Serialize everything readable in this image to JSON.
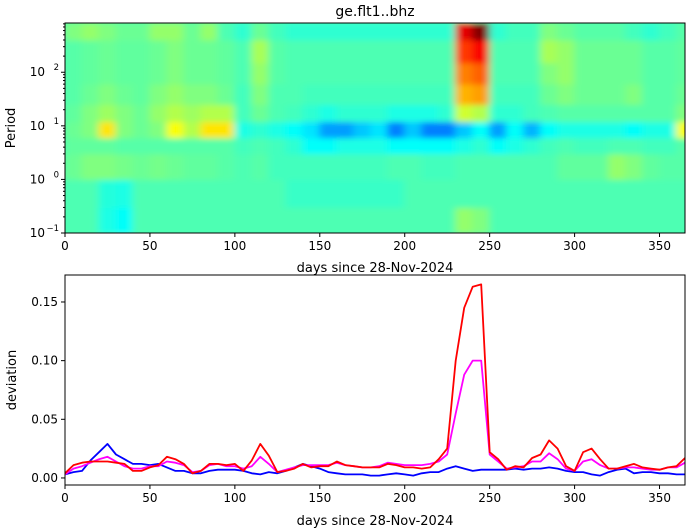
{
  "chart_data": [
    {
      "type": "heatmap",
      "title": "ge.flt1..bhz",
      "xlabel": "days since 28-Nov-2024",
      "ylabel": "Period",
      "xlim": [
        0,
        365
      ],
      "ylim": [
        0.1,
        830
      ],
      "yscale": "log",
      "colormap": "jet",
      "xticks": [
        0,
        50,
        100,
        150,
        200,
        250,
        300,
        350
      ],
      "yticks": [
        {
          "base": "10",
          "exp": "−1",
          "value": 0.1
        },
        {
          "base": "10",
          "exp": "0",
          "value": 1
        },
        {
          "base": "10",
          "exp": "1",
          "value": 10
        },
        {
          "base": "10",
          "exp": "2",
          "value": 100
        }
      ],
      "x_bin_edges_days": [
        0,
        10,
        20,
        30,
        40,
        50,
        60,
        70,
        80,
        90,
        100,
        110,
        120,
        130,
        140,
        150,
        160,
        170,
        180,
        190,
        200,
        210,
        220,
        230,
        240,
        250,
        260,
        270,
        280,
        290,
        300,
        310,
        320,
        330,
        340,
        350,
        360,
        370
      ],
      "period_bin_edges": [
        0.1,
        0.3,
        1,
        3,
        6,
        12,
        25,
        60,
        150,
        400,
        830
      ],
      "level_percent": [
        [
          45,
          45,
          40,
          38,
          45,
          45,
          45,
          45,
          45,
          45,
          45,
          45,
          45,
          45,
          45,
          45,
          45,
          45,
          45,
          45,
          45,
          45,
          45,
          52,
          50,
          45,
          45,
          45,
          45,
          45,
          45,
          45,
          45,
          45,
          45,
          45,
          45
        ],
        [
          45,
          45,
          41,
          40,
          45,
          45,
          45,
          45,
          45,
          45,
          45,
          45,
          45,
          43,
          43,
          43,
          43,
          43,
          43,
          43,
          45,
          45,
          45,
          45,
          45,
          45,
          45,
          45,
          45,
          45,
          45,
          45,
          45,
          45,
          45,
          45,
          45
        ],
        [
          48,
          50,
          50,
          49,
          48,
          49,
          48,
          47,
          47,
          46,
          45,
          46,
          44,
          44,
          44,
          44,
          44,
          44,
          44,
          45,
          45,
          44,
          44,
          45,
          45,
          45,
          45,
          45,
          45,
          47,
          47,
          47,
          52,
          50,
          47,
          46,
          46
        ],
        [
          47,
          47,
          47,
          46,
          46,
          46,
          46,
          46,
          46,
          46,
          44,
          45,
          44,
          42,
          38,
          38,
          40,
          40,
          40,
          38,
          38,
          38,
          38,
          40,
          42,
          38,
          40,
          42,
          44,
          45,
          44,
          44,
          45,
          45,
          44,
          44,
          46
        ],
        [
          48,
          50,
          65,
          50,
          48,
          50,
          62,
          55,
          65,
          65,
          40,
          42,
          40,
          38,
          35,
          28,
          28,
          32,
          35,
          25,
          32,
          25,
          25,
          32,
          38,
          28,
          38,
          30,
          38,
          40,
          40,
          40,
          40,
          38,
          40,
          40,
          62
        ],
        [
          47,
          50,
          53,
          50,
          48,
          52,
          55,
          53,
          55,
          55,
          44,
          48,
          45,
          44,
          42,
          40,
          42,
          42,
          42,
          40,
          40,
          40,
          42,
          58,
          55,
          42,
          42,
          44,
          45,
          46,
          46,
          46,
          46,
          46,
          46,
          46,
          50
        ],
        [
          46,
          48,
          50,
          48,
          47,
          50,
          52,
          50,
          50,
          48,
          44,
          50,
          45,
          45,
          44,
          44,
          44,
          44,
          44,
          44,
          44,
          44,
          44,
          70,
          72,
          44,
          44,
          44,
          48,
          50,
          48,
          48,
          48,
          50,
          46,
          46,
          48
        ],
        [
          46,
          47,
          48,
          47,
          47,
          48,
          50,
          48,
          48,
          47,
          45,
          52,
          46,
          45,
          45,
          45,
          45,
          45,
          45,
          45,
          45,
          45,
          45,
          75,
          78,
          45,
          45,
          45,
          50,
          52,
          48,
          48,
          48,
          48,
          46,
          46,
          47
        ],
        [
          46,
          47,
          48,
          47,
          47,
          48,
          50,
          48,
          48,
          47,
          45,
          54,
          46,
          45,
          45,
          45,
          45,
          45,
          45,
          45,
          45,
          45,
          45,
          82,
          88,
          45,
          45,
          45,
          54,
          52,
          48,
          48,
          48,
          48,
          46,
          46,
          47
        ],
        [
          50,
          52,
          50,
          48,
          48,
          52,
          52,
          48,
          52,
          45,
          42,
          48,
          44,
          42,
          42,
          42,
          42,
          42,
          42,
          42,
          42,
          42,
          42,
          90,
          100,
          42,
          44,
          44,
          50,
          48,
          46,
          46,
          46,
          44,
          42,
          44,
          46
        ]
      ]
    },
    {
      "type": "line",
      "xlabel": "days since 28-Nov-2024",
      "ylabel": "deviation",
      "xlim": [
        0,
        365
      ],
      "ylim": [
        -0.006,
        0.173
      ],
      "xticks": [
        0,
        50,
        100,
        150,
        200,
        250,
        300,
        350
      ],
      "yticks": [
        "0.00",
        "0.05",
        "0.10",
        "0.15"
      ],
      "x_step_days": 5,
      "series": [
        {
          "color": "#0000ff",
          "values": [
            0.003,
            0.005,
            0.006,
            0.015,
            0.022,
            0.029,
            0.02,
            0.016,
            0.012,
            0.012,
            0.011,
            0.012,
            0.009,
            0.006,
            0.006,
            0.004,
            0.004,
            0.006,
            0.007,
            0.007,
            0.007,
            0.006,
            0.004,
            0.003,
            0.005,
            0.004,
            0.006,
            0.009,
            0.012,
            0.01,
            0.008,
            0.005,
            0.004,
            0.003,
            0.003,
            0.003,
            0.002,
            0.002,
            0.003,
            0.004,
            0.003,
            0.002,
            0.004,
            0.005,
            0.005,
            0.008,
            0.01,
            0.008,
            0.006,
            0.007,
            0.007,
            0.007,
            0.007,
            0.008,
            0.007,
            0.008,
            0.008,
            0.009,
            0.008,
            0.006,
            0.005,
            0.005,
            0.003,
            0.002,
            0.005,
            0.007,
            0.008,
            0.004,
            0.005,
            0.005,
            0.004,
            0.004,
            0.003,
            0.003
          ]
        },
        {
          "color": "#ff00ff",
          "values": [
            0.003,
            0.008,
            0.01,
            0.013,
            0.016,
            0.018,
            0.014,
            0.01,
            0.008,
            0.008,
            0.01,
            0.01,
            0.014,
            0.013,
            0.011,
            0.005,
            0.006,
            0.011,
            0.012,
            0.01,
            0.01,
            0.008,
            0.01,
            0.018,
            0.012,
            0.005,
            0.007,
            0.009,
            0.011,
            0.011,
            0.011,
            0.011,
            0.013,
            0.011,
            0.01,
            0.009,
            0.009,
            0.01,
            0.013,
            0.012,
            0.011,
            0.011,
            0.011,
            0.012,
            0.014,
            0.02,
            0.055,
            0.088,
            0.1,
            0.1,
            0.02,
            0.014,
            0.008,
            0.009,
            0.01,
            0.014,
            0.014,
            0.021,
            0.016,
            0.008,
            0.006,
            0.014,
            0.016,
            0.011,
            0.008,
            0.008,
            0.009,
            0.009,
            0.008,
            0.007,
            0.007,
            0.009,
            0.009,
            0.013
          ]
        },
        {
          "color": "#ff0000",
          "values": [
            0.004,
            0.011,
            0.013,
            0.014,
            0.014,
            0.014,
            0.013,
            0.012,
            0.006,
            0.006,
            0.009,
            0.011,
            0.018,
            0.016,
            0.012,
            0.004,
            0.006,
            0.012,
            0.012,
            0.011,
            0.012,
            0.006,
            0.015,
            0.029,
            0.019,
            0.005,
            0.006,
            0.008,
            0.012,
            0.009,
            0.01,
            0.01,
            0.014,
            0.011,
            0.01,
            0.009,
            0.009,
            0.009,
            0.012,
            0.011,
            0.009,
            0.009,
            0.008,
            0.009,
            0.016,
            0.025,
            0.1,
            0.145,
            0.163,
            0.165,
            0.022,
            0.016,
            0.007,
            0.01,
            0.009,
            0.017,
            0.02,
            0.032,
            0.025,
            0.01,
            0.006,
            0.022,
            0.025,
            0.016,
            0.008,
            0.008,
            0.01,
            0.012,
            0.009,
            0.008,
            0.007,
            0.009,
            0.01,
            0.017
          ]
        }
      ]
    }
  ]
}
